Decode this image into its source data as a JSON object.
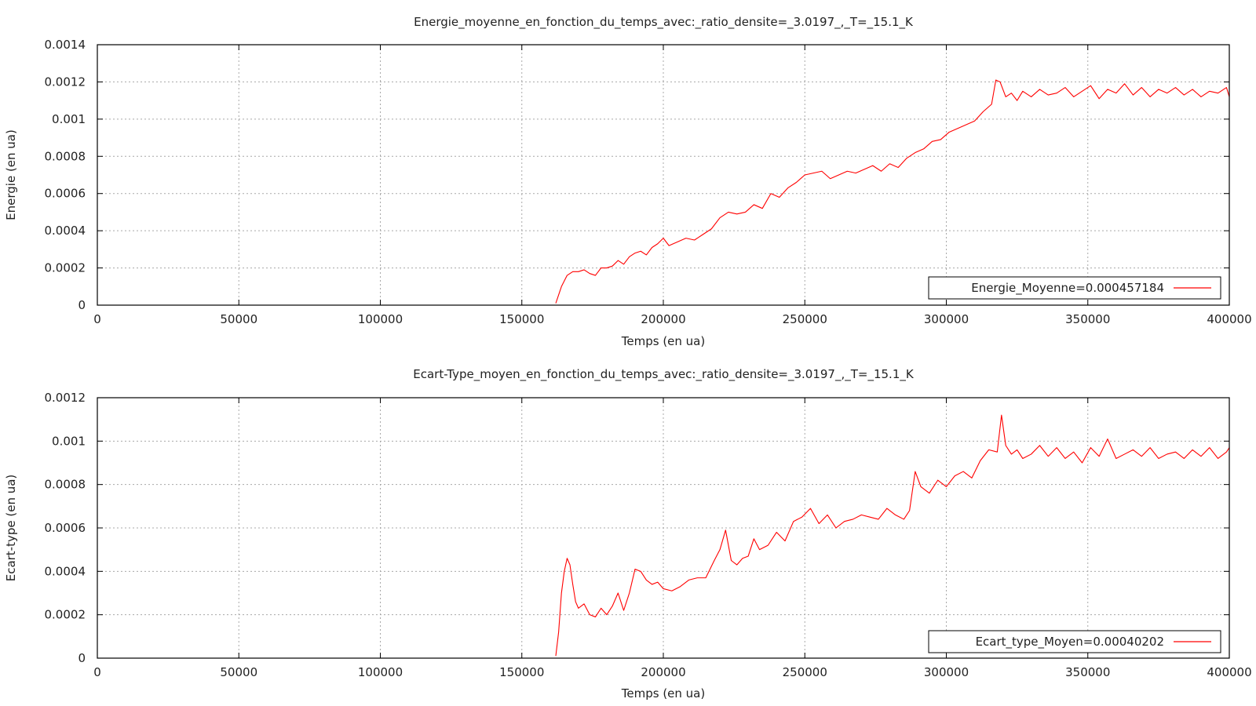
{
  "figure": {
    "background": "#ffffff",
    "series_color": "#ff0000"
  },
  "chart_data": [
    {
      "type": "line",
      "title": "Energie_moyenne_en_fonction_du_temps_avec:_ratio_densite=_3.0197_,_T=_15.1_K",
      "xlabel": "Temps (en ua)",
      "ylabel": "Energie (en ua)",
      "xlim": [
        0,
        400000
      ],
      "ylim": [
        0,
        0.0014
      ],
      "xticks": [
        "0",
        "50000",
        "100000",
        "150000",
        "200000",
        "250000",
        "300000",
        "350000",
        "400000"
      ],
      "yticks": [
        "0",
        "0.0002",
        "0.0004",
        "0.0006",
        "0.0008",
        "0.001",
        "0.0012",
        "0.0014"
      ],
      "grid": true,
      "legend_position": "bottom-right",
      "series": [
        {
          "name": "Energie_Moyenne=0.000457184",
          "color": "#ff0000",
          "x": [
            162000,
            164000,
            166000,
            168000,
            170000,
            172000,
            174000,
            176000,
            178000,
            180000,
            182000,
            184000,
            186000,
            188000,
            190000,
            192000,
            194000,
            196000,
            198000,
            200000,
            202000,
            205000,
            208000,
            211000,
            214000,
            217000,
            220000,
            223000,
            226000,
            229000,
            232000,
            235000,
            238000,
            241000,
            244000,
            247000,
            250000,
            253000,
            256000,
            259000,
            262000,
            265000,
            268000,
            271000,
            274000,
            277000,
            280000,
            283000,
            286000,
            289000,
            292000,
            295000,
            298000,
            301000,
            304000,
            307000,
            310000,
            313000,
            316000,
            317500,
            319000,
            321000,
            323000,
            325000,
            327000,
            330000,
            333000,
            336000,
            339000,
            342000,
            345000,
            348000,
            351000,
            354000,
            357000,
            360000,
            363000,
            366000,
            369000,
            372000,
            375000,
            378000,
            381000,
            384000,
            387000,
            390000,
            393000,
            396000,
            399000,
            400000
          ],
          "y": [
            1e-05,
            0.0001,
            0.00016,
            0.00018,
            0.00018,
            0.00019,
            0.00017,
            0.00016,
            0.0002,
            0.0002,
            0.00021,
            0.00024,
            0.00022,
            0.00026,
            0.00028,
            0.00029,
            0.00027,
            0.00031,
            0.00033,
            0.00036,
            0.00032,
            0.00034,
            0.00036,
            0.00035,
            0.00038,
            0.00041,
            0.00047,
            0.0005,
            0.00049,
            0.0005,
            0.00054,
            0.00052,
            0.0006,
            0.00058,
            0.00063,
            0.00066,
            0.0007,
            0.00071,
            0.00072,
            0.00068,
            0.0007,
            0.00072,
            0.00071,
            0.00073,
            0.00075,
            0.00072,
            0.00076,
            0.00074,
            0.00079,
            0.00082,
            0.00084,
            0.00088,
            0.00089,
            0.00093,
            0.00095,
            0.00097,
            0.00099,
            0.00104,
            0.00108,
            0.00121,
            0.0012,
            0.00112,
            0.00114,
            0.0011,
            0.00115,
            0.00112,
            0.00116,
            0.00113,
            0.00114,
            0.00117,
            0.00112,
            0.00115,
            0.00118,
            0.00111,
            0.00116,
            0.00114,
            0.00119,
            0.00113,
            0.00117,
            0.00112,
            0.00116,
            0.00114,
            0.00117,
            0.00113,
            0.00116,
            0.00112,
            0.00115,
            0.00114,
            0.00117,
            0.00112
          ]
        }
      ]
    },
    {
      "type": "line",
      "title": "Ecart-Type_moyen_en_fonction_du_temps_avec:_ratio_densite=_3.0197_,_T=_15.1_K",
      "xlabel": "Temps (en ua)",
      "ylabel": "Ecart-type (en ua)",
      "xlim": [
        0,
        400000
      ],
      "ylim": [
        0,
        0.0012
      ],
      "xticks": [
        "0",
        "50000",
        "100000",
        "150000",
        "200000",
        "250000",
        "300000",
        "350000",
        "400000"
      ],
      "yticks": [
        "0",
        "0.0002",
        "0.0004",
        "0.0006",
        "0.0008",
        "0.001",
        "0.0012"
      ],
      "grid": true,
      "legend_position": "bottom-right",
      "series": [
        {
          "name": "Ecart_type_Moyen=0.00040202",
          "color": "#ff0000",
          "x": [
            162000,
            163000,
            164000,
            165000,
            166000,
            167000,
            168000,
            169000,
            170000,
            172000,
            174000,
            176000,
            178000,
            180000,
            182000,
            184000,
            186000,
            188000,
            190000,
            192000,
            194000,
            196000,
            198000,
            200000,
            203000,
            206000,
            209000,
            212000,
            215000,
            218000,
            220000,
            222000,
            224000,
            226000,
            228000,
            230000,
            232000,
            234000,
            237000,
            240000,
            243000,
            246000,
            249000,
            252000,
            255000,
            258000,
            261000,
            264000,
            267000,
            270000,
            273000,
            276000,
            279000,
            282000,
            285000,
            287000,
            289000,
            291000,
            294000,
            297000,
            300000,
            303000,
            306000,
            309000,
            312000,
            315000,
            318000,
            319500,
            321000,
            323000,
            325000,
            327000,
            330000,
            333000,
            336000,
            339000,
            342000,
            345000,
            348000,
            351000,
            354000,
            357000,
            360000,
            363000,
            366000,
            369000,
            372000,
            375000,
            378000,
            381000,
            384000,
            387000,
            390000,
            393000,
            396000,
            399000,
            400000
          ],
          "y": [
            1e-05,
            0.00012,
            0.0003,
            0.0004,
            0.00046,
            0.00043,
            0.00034,
            0.00026,
            0.00023,
            0.00025,
            0.0002,
            0.00019,
            0.00023,
            0.0002,
            0.00024,
            0.0003,
            0.00022,
            0.0003,
            0.00041,
            0.0004,
            0.00036,
            0.00034,
            0.00035,
            0.00032,
            0.00031,
            0.00033,
            0.00036,
            0.00037,
            0.00037,
            0.00045,
            0.0005,
            0.00059,
            0.00045,
            0.00043,
            0.00046,
            0.00047,
            0.00055,
            0.0005,
            0.00052,
            0.00058,
            0.00054,
            0.00063,
            0.00065,
            0.00069,
            0.00062,
            0.00066,
            0.0006,
            0.00063,
            0.00064,
            0.00066,
            0.00065,
            0.00064,
            0.00069,
            0.00066,
            0.00064,
            0.00068,
            0.00086,
            0.00079,
            0.00076,
            0.00082,
            0.00079,
            0.00084,
            0.00086,
            0.00083,
            0.00091,
            0.00096,
            0.00095,
            0.00112,
            0.00098,
            0.00094,
            0.00096,
            0.00092,
            0.00094,
            0.00098,
            0.00093,
            0.00097,
            0.00092,
            0.00095,
            0.0009,
            0.00097,
            0.00093,
            0.00101,
            0.00092,
            0.00094,
            0.00096,
            0.00093,
            0.00097,
            0.00092,
            0.00094,
            0.00095,
            0.00092,
            0.00096,
            0.00093,
            0.00097,
            0.00092,
            0.00095,
            0.00097
          ]
        }
      ]
    }
  ]
}
